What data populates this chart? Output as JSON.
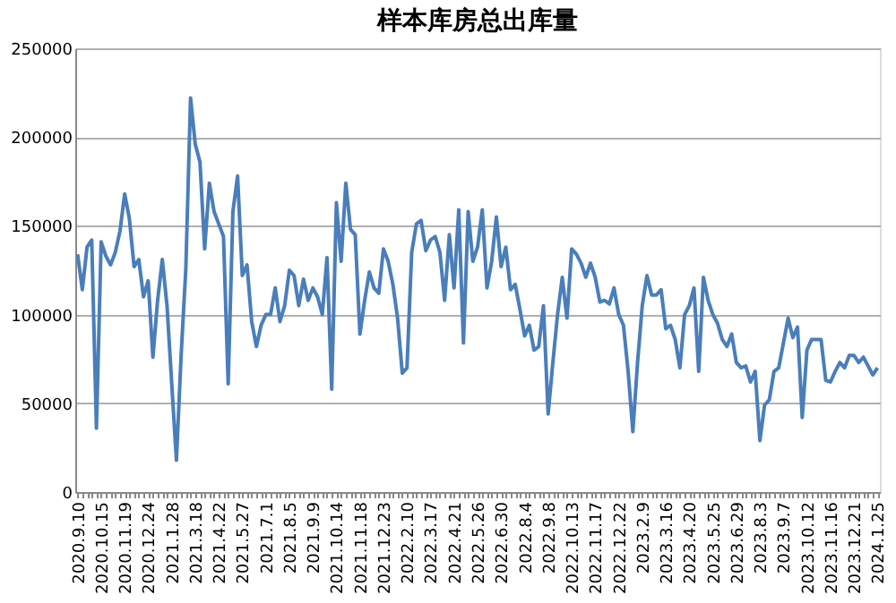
{
  "chart_data": {
    "type": "line",
    "title": "样本库房总出库量",
    "categories": [
      "2020.9.10",
      null,
      null,
      null,
      null,
      "2020.10.15",
      null,
      null,
      null,
      null,
      "2020.11.19",
      null,
      null,
      null,
      null,
      "2020.12.24",
      null,
      null,
      null,
      null,
      "2021.1.28",
      null,
      null,
      null,
      null,
      "2021.3.18",
      null,
      null,
      null,
      null,
      "2021.4.22",
      null,
      null,
      null,
      null,
      "2021.5.27",
      null,
      null,
      null,
      null,
      "2021.7.1",
      null,
      null,
      null,
      null,
      "2021.8.5",
      null,
      null,
      null,
      null,
      "2021.9.9",
      null,
      null,
      null,
      null,
      "2021.10.14",
      null,
      null,
      null,
      null,
      "2021.11.18",
      null,
      null,
      null,
      null,
      "2021.12.23",
      null,
      null,
      null,
      null,
      "2022.2.10",
      null,
      null,
      null,
      null,
      "2022.3.17",
      null,
      null,
      null,
      null,
      "2022.4.21",
      null,
      null,
      null,
      null,
      "2022.5.26",
      null,
      null,
      null,
      null,
      "2022.6.30",
      null,
      null,
      null,
      null,
      "2022.8.4",
      null,
      null,
      null,
      null,
      "2022.9.8",
      null,
      null,
      null,
      null,
      "2022.10.13",
      null,
      null,
      null,
      null,
      "2022.11.17",
      null,
      null,
      null,
      null,
      "2022.12.22",
      null,
      null,
      null,
      null,
      "2023.2.9",
      null,
      null,
      null,
      null,
      "2023.3.16",
      null,
      null,
      null,
      null,
      "2023.4.20",
      null,
      null,
      null,
      null,
      "2023.5.25",
      null,
      null,
      null,
      null,
      "2023.6.29",
      null,
      null,
      null,
      null,
      "2023.8.3",
      null,
      null,
      null,
      null,
      "2023.9.7",
      null,
      null,
      null,
      null,
      "2023.10.12",
      null,
      null,
      null,
      null,
      "2023.11.16",
      null,
      null,
      null,
      null,
      "2023.12.21",
      null,
      null,
      null,
      null,
      "2024.1.25"
    ],
    "series": [
      {
        "color": "#4a7ebb",
        "values": [
          134000,
          114000,
          138000,
          142000,
          36000,
          141000,
          133000,
          128000,
          135000,
          147000,
          168000,
          154000,
          127000,
          131000,
          110000,
          119000,
          76000,
          108000,
          131000,
          105000,
          61000,
          18000,
          77000,
          126000,
          222000,
          196000,
          186000,
          137000,
          174000,
          158000,
          151000,
          144000,
          61000,
          158000,
          178000,
          122000,
          128000,
          96000,
          82000,
          94000,
          100000,
          100000,
          115000,
          96000,
          105000,
          125000,
          122000,
          105000,
          120000,
          108000,
          115000,
          110000,
          100000,
          132000,
          58000,
          163000,
          130000,
          174000,
          148000,
          145000,
          89000,
          108000,
          124000,
          115000,
          112000,
          137000,
          130000,
          117000,
          98000,
          67000,
          70000,
          135000,
          151000,
          153000,
          136000,
          142000,
          144000,
          135000,
          108000,
          145000,
          115000,
          159000,
          84000,
          158000,
          130000,
          138000,
          159000,
          115000,
          130000,
          155000,
          127000,
          138000,
          114000,
          117000,
          103000,
          88000,
          94000,
          80000,
          82000,
          105000,
          44000,
          73000,
          100000,
          121000,
          98000,
          137000,
          134000,
          129000,
          121000,
          129000,
          121000,
          107000,
          108000,
          106000,
          115000,
          100000,
          94000,
          68000,
          34000,
          73000,
          105000,
          122000,
          111000,
          111000,
          114000,
          92000,
          94000,
          86000,
          70000,
          100000,
          105000,
          115000,
          68000,
          121000,
          108000,
          100000,
          95000,
          86000,
          82000,
          89000,
          73000,
          70000,
          71000,
          62000,
          68000,
          29000,
          49000,
          52000,
          68000,
          70000,
          84000,
          98000,
          87000,
          93000,
          42000,
          80000,
          86000,
          86000,
          86000,
          63000,
          62000,
          68000,
          73000,
          70000,
          77000,
          77000,
          73000,
          76000,
          71000,
          66000,
          70000
        ]
      }
    ],
    "ylim": [
      0,
      250000
    ],
    "yticks": [
      0,
      50000,
      100000,
      150000,
      200000,
      250000
    ],
    "grid": "y",
    "legend": false
  }
}
